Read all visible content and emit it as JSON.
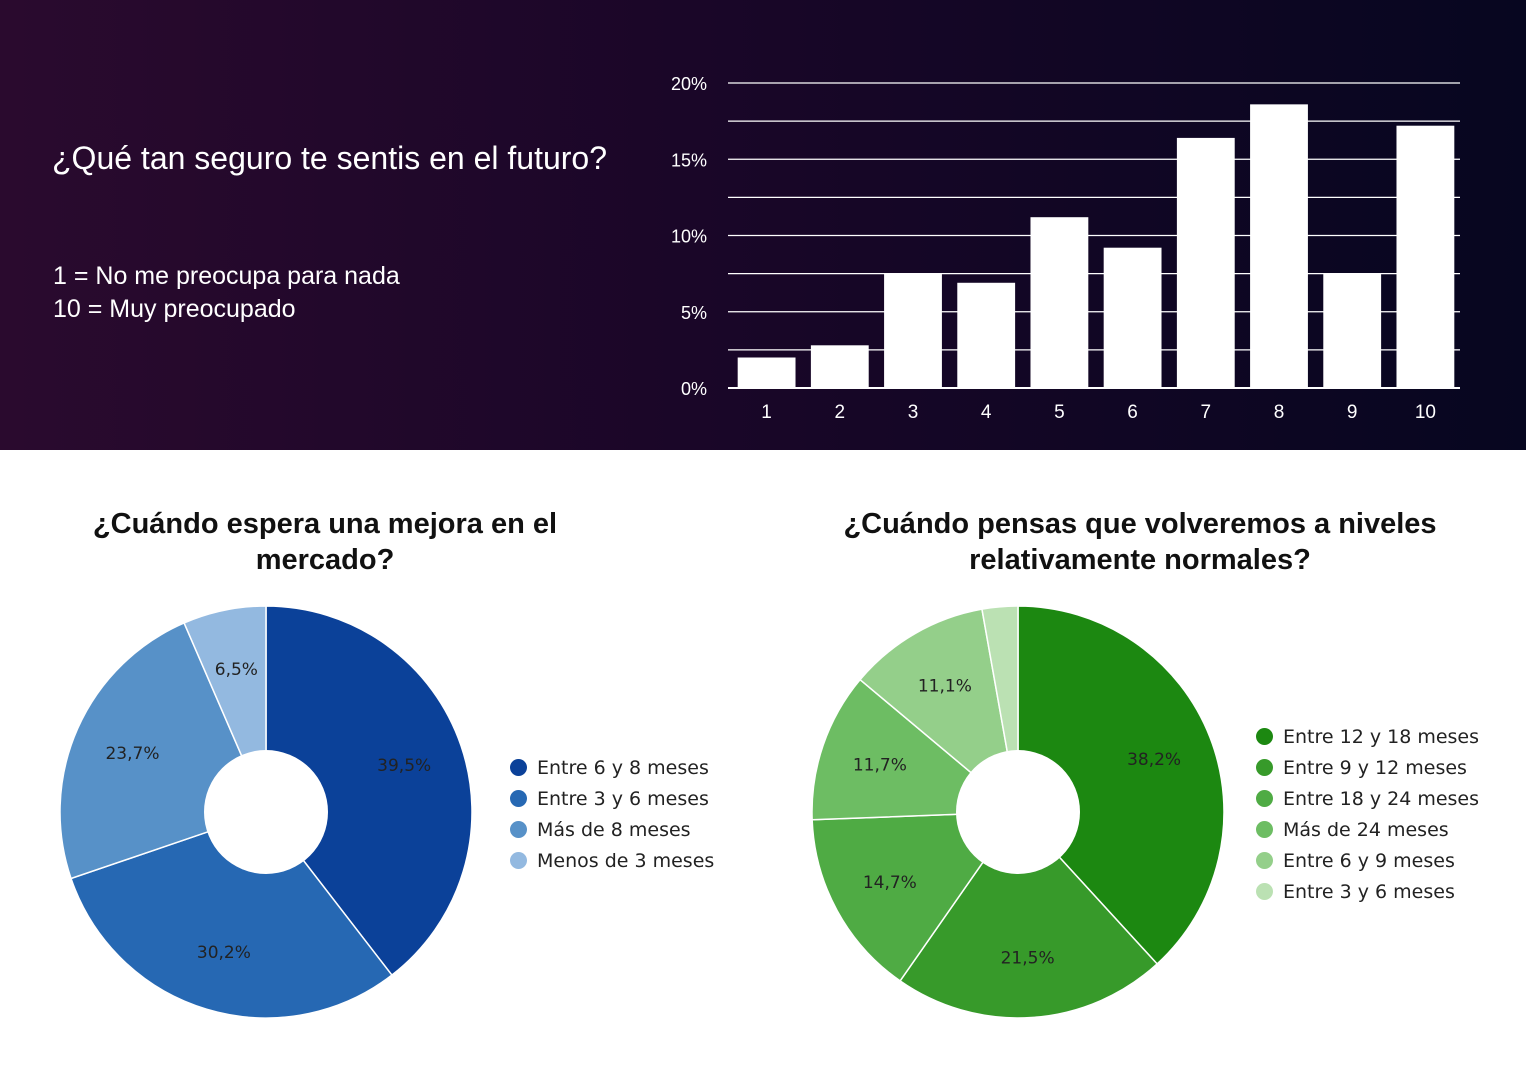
{
  "header": {
    "title": "¿Qué tan seguro te sentis en el futuro?",
    "scale_low": "1 = No me preocupa para nada",
    "scale_high": "10 = Muy preocupado"
  },
  "colors": {
    "panel_left": "#2a0a2e",
    "panel_right": "#070620",
    "bar_fill": "#ffffff",
    "blue": [
      "#0b4199",
      "#2668b3",
      "#5791c8",
      "#93b9e0"
    ],
    "green": [
      "#1c8811",
      "#379a2a",
      "#4fab44",
      "#6dbd63",
      "#94cf8a",
      "#bbe1b3"
    ]
  },
  "chart_data": [
    {
      "type": "bar",
      "categories": [
        "1",
        "2",
        "3",
        "4",
        "5",
        "6",
        "7",
        "8",
        "9",
        "10"
      ],
      "values": [
        2.0,
        2.8,
        7.5,
        6.9,
        11.2,
        9.2,
        16.4,
        18.6,
        7.5,
        17.2
      ],
      "ylim": [
        0,
        20
      ],
      "yticks": [
        "0%",
        "5%",
        "10%",
        "15%",
        "20%"
      ],
      "grid": true
    },
    {
      "type": "pie",
      "title": "¿Cuándo espera una mejora en el mercado?",
      "labels": [
        "Entre 6 y 8 meses",
        "Entre 3 y 6 meses",
        "Más de 8 meses",
        "Menos de 3 meses"
      ],
      "values": [
        39.5,
        30.2,
        23.7,
        6.5
      ],
      "value_labels": [
        "39,5%",
        "30,2%",
        "23,7%",
        "6,5%"
      ],
      "legend": "right"
    },
    {
      "type": "pie",
      "title": "¿Cuándo pensas que volveremos a niveles relativamente normales?",
      "labels": [
        "Entre 12 y 18 meses",
        "Entre 9 y 12 meses",
        "Entre 18 y 24 meses",
        "Más de 24 meses",
        "Entre 6 y 9 meses",
        "Entre 3 y 6 meses"
      ],
      "values": [
        38.2,
        21.5,
        14.7,
        11.7,
        11.1,
        2.8
      ],
      "value_labels": [
        "38,2%",
        "21,5%",
        "14,7%",
        "11,7%",
        "11,1%",
        ""
      ],
      "legend": "right"
    }
  ]
}
